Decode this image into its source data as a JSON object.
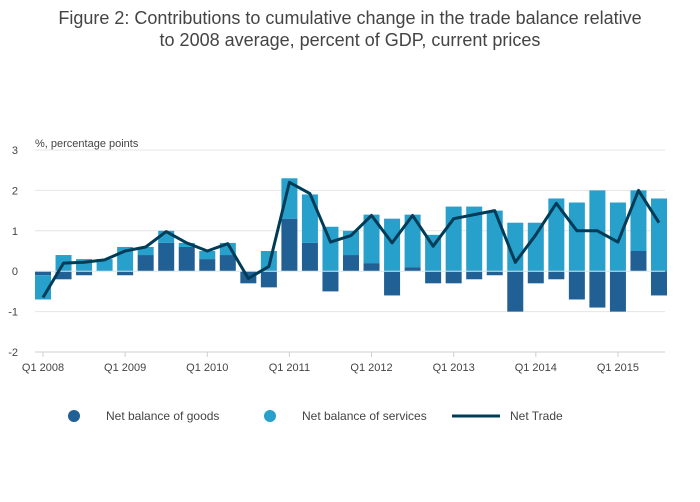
{
  "chart_data": {
    "type": "bar",
    "title_lines": [
      "Figure 2: Contributions to cumulative change in the trade balance relative",
      "to 2008 average, percent of GDP, current prices"
    ],
    "ylabel": "%, percentage points",
    "ylim": [
      -2,
      3
    ],
    "yticks": [
      -2,
      -1,
      0,
      1,
      2,
      3
    ],
    "tick_labels": [
      {
        "label": "Q1 2008",
        "index": 0
      },
      {
        "label": "Q1 2009",
        "index": 4
      },
      {
        "label": "Q1 2010",
        "index": 8
      },
      {
        "label": "Q1 2011",
        "index": 12
      },
      {
        "label": "Q1 2012",
        "index": 16
      },
      {
        "label": "Q1 2013",
        "index": 20
      },
      {
        "label": "Q1 2014",
        "index": 24
      },
      {
        "label": "Q1 2015",
        "index": 28
      }
    ],
    "categories": [
      "Q1 2008",
      "Q2 2008",
      "Q3 2008",
      "Q4 2008",
      "Q1 2009",
      "Q2 2009",
      "Q3 2009",
      "Q4 2009",
      "Q1 2010",
      "Q2 2010",
      "Q3 2010",
      "Q4 2010",
      "Q1 2011",
      "Q2 2011",
      "Q3 2011",
      "Q4 2011",
      "Q1 2012",
      "Q2 2012",
      "Q3 2012",
      "Q4 2012",
      "Q1 2013",
      "Q2 2013",
      "Q3 2013",
      "Q4 2013",
      "Q1 2014",
      "Q2 2014",
      "Q3 2014",
      "Q4 2014",
      "Q1 2015",
      "Q2 2015",
      "Q3 2015"
    ],
    "stacked": true,
    "series": [
      {
        "name": "Net balance of goods",
        "type": "bar",
        "color": "#206095",
        "values": [
          -0.1,
          -0.2,
          -0.1,
          0.0,
          -0.1,
          0.4,
          0.7,
          0.6,
          0.3,
          0.4,
          -0.3,
          -0.4,
          1.3,
          0.7,
          -0.5,
          0.4,
          0.2,
          -0.6,
          0.1,
          -0.3,
          -0.3,
          -0.2,
          -0.1,
          -1.0,
          -0.3,
          -0.2,
          -0.7,
          -0.9,
          -1.0,
          0.5,
          -0.6
        ]
      },
      {
        "name": "Net balance of services",
        "type": "bar",
        "color": "#27A0CC",
        "values": [
          -0.6,
          0.4,
          0.3,
          0.3,
          0.6,
          0.2,
          0.3,
          0.1,
          0.2,
          0.3,
          0.0,
          0.5,
          1.0,
          1.2,
          1.1,
          0.6,
          1.2,
          1.3,
          1.3,
          0.9,
          1.6,
          1.6,
          1.5,
          1.2,
          1.2,
          1.8,
          1.7,
          2.0,
          1.7,
          1.5,
          1.8
        ]
      },
      {
        "name": "Net Trade",
        "type": "line",
        "color": "#003C57",
        "values": [
          -0.65,
          0.2,
          0.22,
          0.28,
          0.5,
          0.6,
          0.98,
          0.7,
          0.5,
          0.68,
          -0.18,
          0.12,
          2.2,
          1.92,
          0.72,
          0.88,
          1.38,
          0.7,
          1.38,
          0.62,
          1.3,
          1.4,
          1.5,
          0.22,
          0.9,
          1.68,
          1.0,
          1.0,
          0.72,
          2.0,
          1.2
        ]
      }
    ],
    "legend_position": "bottom",
    "grid": true
  }
}
